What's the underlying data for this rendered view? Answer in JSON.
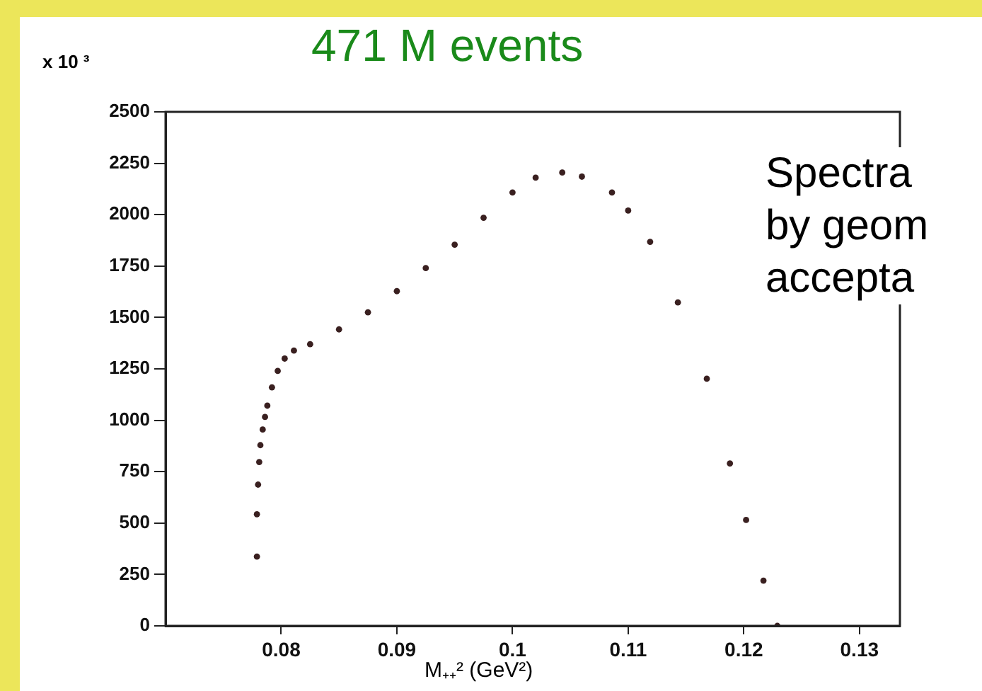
{
  "chart_data": {
    "type": "scatter",
    "title": "471 M events",
    "xlabel": "M₊₊² (GeV²)",
    "ylabel": "x 10 ³",
    "annotations": [
      "Spectra\nby geom\naccepta"
    ],
    "x": [
      0.0779,
      0.0779,
      0.078,
      0.0781,
      0.0782,
      0.0784,
      0.0786,
      0.0788,
      0.0792,
      0.0797,
      0.0803,
      0.0811,
      0.0825,
      0.085,
      0.0875,
      0.09,
      0.0925,
      0.095,
      0.0975,
      0.1,
      0.102,
      0.1043,
      0.106,
      0.1086,
      0.11,
      0.1119,
      0.1143,
      0.1168,
      0.1188,
      0.1202,
      0.1217,
      0.1229
    ],
    "series": [
      {
        "color": "#3a2020",
        "values": [
          337,
          543,
          687,
          797,
          879,
          955,
          1016,
          1071,
          1160,
          1240,
          1300,
          1339,
          1370,
          1442,
          1525,
          1628,
          1740,
          1854,
          1985,
          2108,
          2180,
          2205,
          2185,
          2108,
          2020,
          1868,
          1573,
          1202,
          790,
          515,
          220,
          0
        ]
      }
    ],
    "xlim": [
      0.07,
      0.1335
    ],
    "xticks": [
      0.08,
      0.09,
      0.1,
      0.11,
      0.12,
      0.13
    ],
    "ylim": [
      0,
      2500
    ],
    "yticks": [
      0,
      250,
      500,
      750,
      1000,
      1250,
      1500,
      1750,
      2000,
      2250,
      2500
    ],
    "marker": "circle",
    "grid": false,
    "legend": false
  }
}
